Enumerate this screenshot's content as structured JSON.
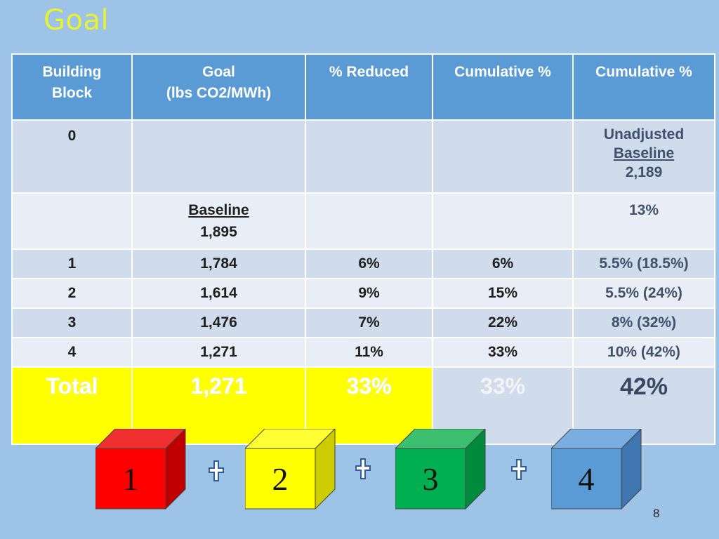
{
  "slide": {
    "title": "Goal",
    "page_number": "8"
  },
  "table": {
    "headers": [
      "Building\nBlock",
      "Goal\n(lbs CO2/MWh)",
      "% Reduced",
      "Cumulative %",
      "Cumulative %"
    ],
    "row0": {
      "block": "0",
      "col5_line1": "Unadjusted",
      "col5_line2": "Baseline",
      "col5_line3": "2,189"
    },
    "baseline_row": {
      "goal_label": "Baseline",
      "goal_value": "1,895",
      "col5": "13%"
    },
    "rows": [
      {
        "block": "1",
        "goal": "1,784",
        "reduced": "6%",
        "cumulative": "6%",
        "cumulative2": "5.5% (18.5%)"
      },
      {
        "block": "2",
        "goal": "1,614",
        "reduced": "9%",
        "cumulative": "15%",
        "cumulative2": "5.5% (24%)"
      },
      {
        "block": "3",
        "goal": "1,476",
        "reduced": "7%",
        "cumulative": "22%",
        "cumulative2": "8% (32%)"
      },
      {
        "block": "4",
        "goal": "1,271",
        "reduced": "11%",
        "cumulative": "33%",
        "cumulative2": "10% (42%)"
      }
    ],
    "total": {
      "label": "Total",
      "goal": "1,271",
      "reduced": "33%",
      "cumulative": "33%",
      "cumulative2": "42%"
    }
  },
  "blocks": [
    {
      "label": "1",
      "color": "#ff0000"
    },
    {
      "label": "2",
      "color": "#ffff00"
    },
    {
      "label": "3",
      "color": "#00b050"
    },
    {
      "label": "4",
      "color": "#5b9bd5"
    }
  ],
  "colors": {
    "background": "#9dc3e6",
    "header": "#5b9bd5",
    "title": "#e8f232",
    "highlight": "#ffff00"
  }
}
